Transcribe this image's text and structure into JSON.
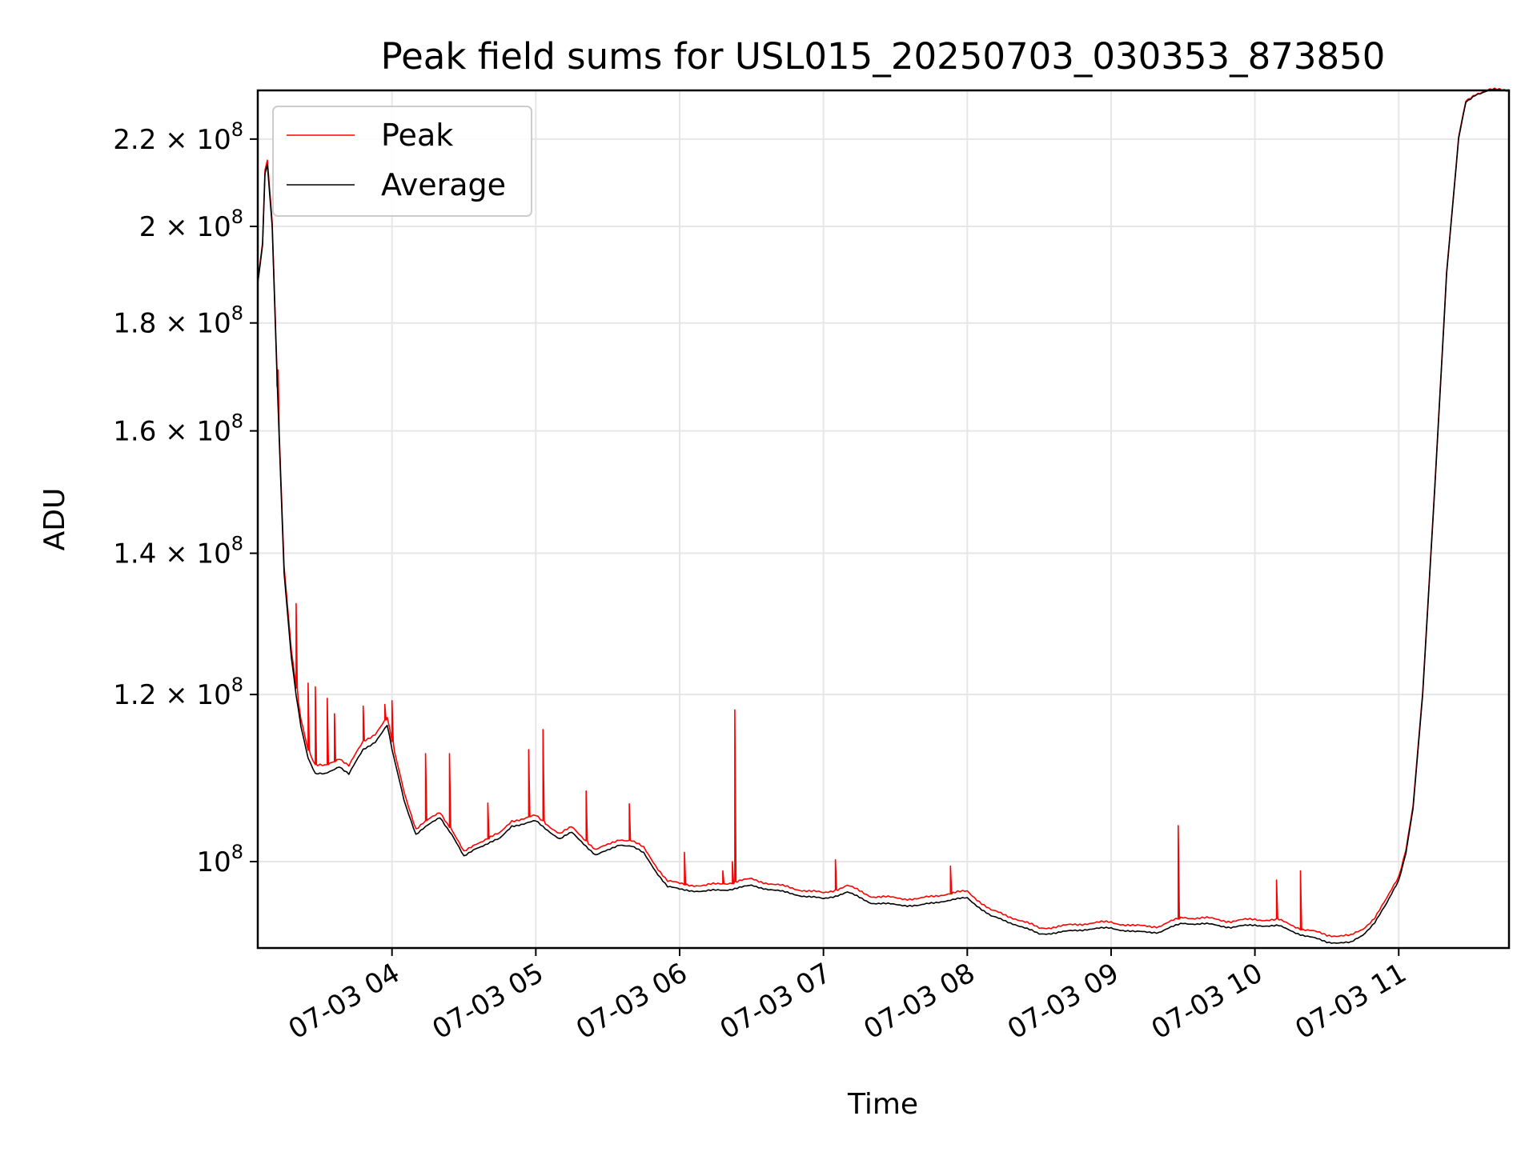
{
  "chart_data": {
    "type": "line",
    "title": "Peak field sums for USL015_20250703_030353_873850",
    "xlabel": "Time",
    "ylabel": "ADU",
    "y_scale": "log",
    "grid": true,
    "legend_position": "top-left",
    "xlim": [
      "07-03 03:04",
      "07-03 11:46"
    ],
    "ylim": [
      91000000,
      232000000
    ],
    "x_ticks": [
      {
        "value": "07-03 04:00",
        "label": "07-03 04"
      },
      {
        "value": "07-03 05:00",
        "label": "07-03 05"
      },
      {
        "value": "07-03 06:00",
        "label": "07-03 06"
      },
      {
        "value": "07-03 07:00",
        "label": "07-03 07"
      },
      {
        "value": "07-03 08:00",
        "label": "07-03 08"
      },
      {
        "value": "07-03 09:00",
        "label": "07-03 09"
      },
      {
        "value": "07-03 10:00",
        "label": "07-03 10"
      },
      {
        "value": "07-03 11:00",
        "label": "07-03 11"
      }
    ],
    "y_ticks": [
      {
        "value": 100000000,
        "mantissa": "",
        "exponent": "8"
      },
      {
        "value": 120000000,
        "mantissa": "1.2",
        "exponent": "8"
      },
      {
        "value": 140000000,
        "mantissa": "1.4",
        "exponent": "8"
      },
      {
        "value": 160000000,
        "mantissa": "1.6",
        "exponent": "8"
      },
      {
        "value": 180000000,
        "mantissa": "1.8",
        "exponent": "8"
      },
      {
        "value": 200000000,
        "mantissa": "2",
        "exponent": "8"
      },
      {
        "value": 220000000,
        "mantissa": "2.2",
        "exponent": "8"
      }
    ],
    "series": [
      {
        "name": "Average",
        "color": "#000000",
        "x": [
          "07-03 03:04",
          "07-03 03:05",
          "07-03 03:06",
          "07-03 03:07",
          "07-03 03:08",
          "07-03 03:10",
          "07-03 03:12",
          "07-03 03:15",
          "07-03 03:18",
          "07-03 03:20",
          "07-03 03:22",
          "07-03 03:25",
          "07-03 03:28",
          "07-03 03:32",
          "07-03 03:38",
          "07-03 03:42",
          "07-03 03:48",
          "07-03 03:53",
          "07-03 03:58",
          "07-03 04:00",
          "07-03 04:05",
          "07-03 04:10",
          "07-03 04:15",
          "07-03 04:20",
          "07-03 04:25",
          "07-03 04:30",
          "07-03 04:35",
          "07-03 04:40",
          "07-03 04:45",
          "07-03 04:50",
          "07-03 04:55",
          "07-03 05:00",
          "07-03 05:05",
          "07-03 05:10",
          "07-03 05:15",
          "07-03 05:20",
          "07-03 05:25",
          "07-03 05:30",
          "07-03 05:35",
          "07-03 05:40",
          "07-03 05:45",
          "07-03 05:50",
          "07-03 05:55",
          "07-03 06:00",
          "07-03 06:10",
          "07-03 06:20",
          "07-03 06:30",
          "07-03 06:40",
          "07-03 06:50",
          "07-03 07:00",
          "07-03 07:10",
          "07-03 07:20",
          "07-03 07:30",
          "07-03 07:40",
          "07-03 07:50",
          "07-03 08:00",
          "07-03 08:10",
          "07-03 08:20",
          "07-03 08:30",
          "07-03 08:40",
          "07-03 08:50",
          "07-03 09:00",
          "07-03 09:10",
          "07-03 09:20",
          "07-03 09:30",
          "07-03 09:40",
          "07-03 09:50",
          "07-03 10:00",
          "07-03 10:10",
          "07-03 10:20",
          "07-03 10:30",
          "07-03 10:40",
          "07-03 10:45",
          "07-03 10:50",
          "07-03 10:55",
          "07-03 11:00",
          "07-03 11:03",
          "07-03 11:06",
          "07-03 11:10",
          "07-03 11:15",
          "07-03 11:20",
          "07-03 11:25",
          "07-03 11:28",
          "07-03 11:32",
          "07-03 11:38",
          "07-03 11:46"
        ],
        "y": [
          188000000,
          192000000,
          196000000,
          212000000,
          214000000,
          200000000,
          170000000,
          137000000,
          125000000,
          120000000,
          116000000,
          112000000,
          110000000,
          110000000,
          111000000,
          110000000,
          113000000,
          114000000,
          116000000,
          113000000,
          107000000,
          103000000,
          104000000,
          105000000,
          103000000,
          100500000,
          101500000,
          102000000,
          102500000,
          104000000,
          104200000,
          104500000,
          103500000,
          102500000,
          103200000,
          102000000,
          100700000,
          101200000,
          101900000,
          101700000,
          100900000,
          99000000,
          97300000,
          97000000,
          96800000,
          97000000,
          97400000,
          96900000,
          96400000,
          96000000,
          96700000,
          95600000,
          95400000,
          95300000,
          95800000,
          96100000,
          94200000,
          93400000,
          92400000,
          92600000,
          92900000,
          93000000,
          92600000,
          92600000,
          93500000,
          93400000,
          93100000,
          93300000,
          93200000,
          92300000,
          91600000,
          91500000,
          92300000,
          93600000,
          95500000,
          98000000,
          101000000,
          106000000,
          120000000,
          150000000,
          190000000,
          220000000,
          229000000,
          231000000,
          232000000,
          232000000
        ]
      },
      {
        "name": "Peak",
        "color": "#ff0000",
        "x": [
          "07-03 03:04",
          "07-03 03:05",
          "07-03 03:06",
          "07-03 03:07",
          "07-03 03:08",
          "07-03 03:10",
          "07-03 03:12",
          "07-03 03:15",
          "07-03 03:18",
          "07-03 03:20",
          "07-03 03:22",
          "07-03 03:25",
          "07-03 03:28",
          "07-03 03:32",
          "07-03 03:38",
          "07-03 03:42",
          "07-03 03:48",
          "07-03 03:53",
          "07-03 03:58",
          "07-03 04:00",
          "07-03 04:05",
          "07-03 04:10",
          "07-03 04:15",
          "07-03 04:20",
          "07-03 04:25",
          "07-03 04:30",
          "07-03 04:35",
          "07-03 04:40",
          "07-03 04:45",
          "07-03 04:50",
          "07-03 04:55",
          "07-03 05:00",
          "07-03 05:05",
          "07-03 05:10",
          "07-03 05:15",
          "07-03 05:20",
          "07-03 05:25",
          "07-03 05:30",
          "07-03 05:35",
          "07-03 05:40",
          "07-03 05:45",
          "07-03 05:50",
          "07-03 05:55",
          "07-03 06:00",
          "07-03 06:10",
          "07-03 06:20",
          "07-03 06:30",
          "07-03 06:40",
          "07-03 06:50",
          "07-03 07:00",
          "07-03 07:10",
          "07-03 07:20",
          "07-03 07:30",
          "07-03 07:40",
          "07-03 07:50",
          "07-03 08:00",
          "07-03 08:10",
          "07-03 08:20",
          "07-03 08:30",
          "07-03 08:40",
          "07-03 08:50",
          "07-03 09:00",
          "07-03 09:10",
          "07-03 09:20",
          "07-03 09:30",
          "07-03 09:40",
          "07-03 09:50",
          "07-03 10:00",
          "07-03 10:10",
          "07-03 10:20",
          "07-03 10:30",
          "07-03 10:40",
          "07-03 10:45",
          "07-03 10:50",
          "07-03 10:55",
          "07-03 11:00",
          "07-03 11:03",
          "07-03 11:06",
          "07-03 11:10",
          "07-03 11:15",
          "07-03 11:20",
          "07-03 11:25",
          "07-03 11:28",
          "07-03 11:32",
          "07-03 11:38",
          "07-03 11:46"
        ],
        "y": [
          188500000,
          192500000,
          196500000,
          213000000,
          215000000,
          201000000,
          171000000,
          138000000,
          126000000,
          121000000,
          117000000,
          113000000,
          111000000,
          111000000,
          112000000,
          111000000,
          114000000,
          115000000,
          117000000,
          114000000,
          108000000,
          103600000,
          104600000,
          105600000,
          103500000,
          101000000,
          102000000,
          102600000,
          103100000,
          104600000,
          104800000,
          105100000,
          104100000,
          103100000,
          103800000,
          102600000,
          101300000,
          101800000,
          102500000,
          102300000,
          101500000,
          99600000,
          97900000,
          97600000,
          97400000,
          97700000,
          98100000,
          97500000,
          97000000,
          96600000,
          97400000,
          96300000,
          96100000,
          96000000,
          96500000,
          96800000,
          94800000,
          94000000,
          93000000,
          93200000,
          93500000,
          93600000,
          93200000,
          93200000,
          94100000,
          94000000,
          93700000,
          93900000,
          93800000,
          92900000,
          92300000,
          92200000,
          92900000,
          94100000,
          96000000,
          98400000,
          101400000,
          106300000,
          120300000,
          150300000,
          190300000,
          220300000,
          229300000,
          231200000,
          232100000,
          232200000
        ],
        "spikes": [
          {
            "x": "07-03 03:12",
            "y": 168000000
          },
          {
            "x": "07-03 03:20",
            "y": 132500000
          },
          {
            "x": "07-03 03:25",
            "y": 121500000
          },
          {
            "x": "07-03 03:28",
            "y": 121000000
          },
          {
            "x": "07-03 03:33",
            "y": 119500000
          },
          {
            "x": "07-03 03:36",
            "y": 117500000
          },
          {
            "x": "07-03 03:48",
            "y": 118500000
          },
          {
            "x": "07-03 03:57",
            "y": 118700000
          },
          {
            "x": "07-03 04:00",
            "y": 119200000
          },
          {
            "x": "07-03 04:14",
            "y": 112500000
          },
          {
            "x": "07-03 04:24",
            "y": 112500000
          },
          {
            "x": "07-03 04:40",
            "y": 106600000
          },
          {
            "x": "07-03 04:57",
            "y": 113000000
          },
          {
            "x": "07-03 05:03",
            "y": 115500000
          },
          {
            "x": "07-03 05:21",
            "y": 108000000
          },
          {
            "x": "07-03 05:39",
            "y": 106500000
          },
          {
            "x": "07-03 06:02",
            "y": 101000000
          },
          {
            "x": "07-03 06:18",
            "y": 99000000
          },
          {
            "x": "07-03 06:22",
            "y": 100000000
          },
          {
            "x": "07-03 06:23",
            "y": 118000000
          },
          {
            "x": "07-03 07:05",
            "y": 100200000
          },
          {
            "x": "07-03 07:53",
            "y": 99500000
          },
          {
            "x": "07-03 09:28",
            "y": 104000000
          },
          {
            "x": "07-03 10:09",
            "y": 98000000
          },
          {
            "x": "07-03 10:19",
            "y": 99000000
          }
        ]
      }
    ]
  }
}
